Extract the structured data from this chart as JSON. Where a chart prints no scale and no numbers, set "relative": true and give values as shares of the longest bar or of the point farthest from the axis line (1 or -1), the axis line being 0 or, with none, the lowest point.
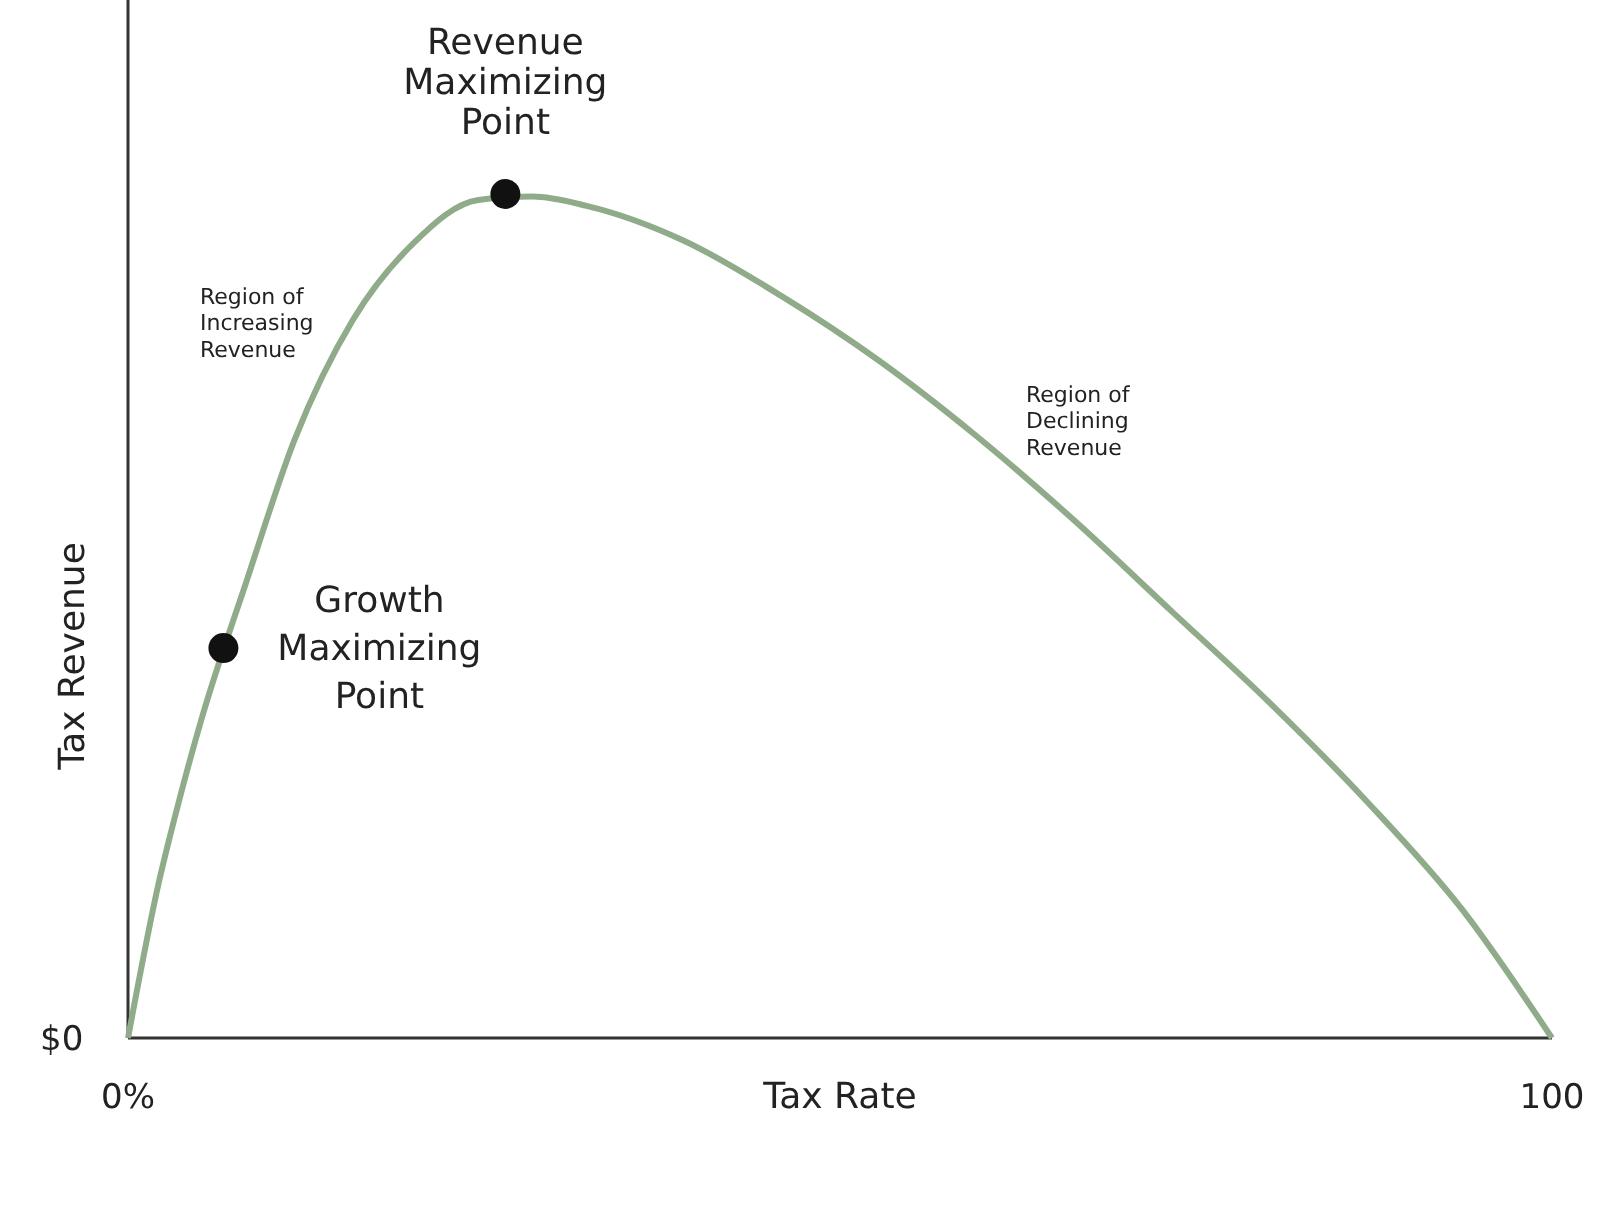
{
  "chart_data": {
    "type": "line",
    "relative": true,
    "xlabel": "Tax Rate",
    "ylabel": "Tax Revenue",
    "xlim": [
      0,
      100
    ],
    "xticks": [
      {
        "value": 0,
        "label": "0%"
      },
      {
        "value": 100,
        "label": "100"
      }
    ],
    "series": [
      {
        "color": "#8fab89",
        "x": [
          0,
          2.2,
          3.6,
          5.2,
          8.3,
          11.7,
          15.8,
          20,
          24.6,
          28.4,
          32.2,
          39,
          45.9,
          52.7,
          59.6,
          66.4,
          73.2,
          80,
          86.9,
          93.7,
          100
        ],
        "values": [
          0,
          0.187,
          0.282,
          0.38,
          0.54,
          0.709,
          0.851,
          0.941,
          0.993,
          0.997,
          0.986,
          0.945,
          0.879,
          0.803,
          0.713,
          0.614,
          0.507,
          0.4,
          0.282,
          0.152,
          0
        ]
      },
      {
        "type": "scatter",
        "color": "#111111",
        "marker": "circle",
        "x": [
          26.5,
          6.7
        ],
        "values": [
          1,
          0.462
        ]
      }
    ],
    "annotations": [
      {
        "text": "Revenue\nMaximizing\nPoint",
        "x": 26.5,
        "y": 1
      },
      {
        "text": "Growth\nMaximizing\nPoint",
        "x": 6.7,
        "y": 0.462
      },
      "Region of\nIncreasing\nRevenue",
      "Region of\nDeclining\nRevenue",
      "$0"
    ]
  }
}
